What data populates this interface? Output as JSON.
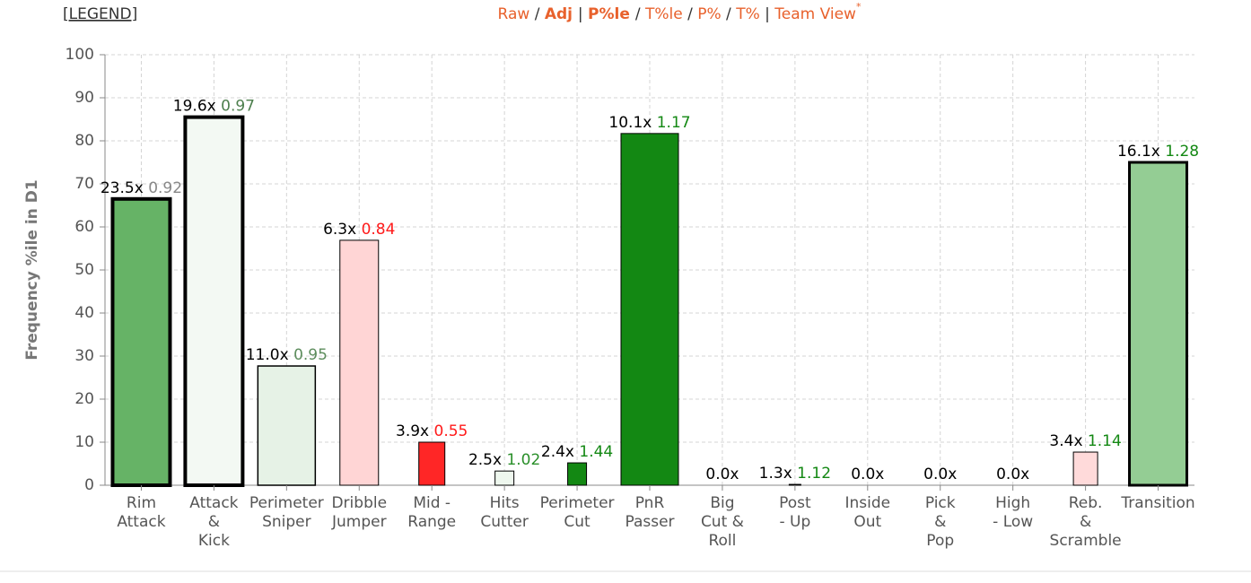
{
  "header": {
    "legend": "[LEGEND]",
    "items": [
      "Raw",
      "/",
      "Adj",
      "|",
      "P%le",
      "/",
      "T%le",
      "/",
      "P%",
      "/",
      "T%",
      "|",
      "Team View"
    ],
    "asterisk": "*"
  },
  "chart_data": {
    "type": "bar",
    "y_label": "Frequency %ile in D1",
    "categories": [
      [
        "Rim",
        "Attack"
      ],
      [
        "Attack",
        "&",
        "Kick"
      ],
      [
        "Perimeter",
        "Sniper"
      ],
      [
        "Dribble",
        "Jumper"
      ],
      [
        "Mid -",
        "Range"
      ],
      [
        "Hits",
        "Cutter"
      ],
      [
        "Perimeter",
        "Cut"
      ],
      [
        "PnR",
        "Passer"
      ],
      [
        "Big",
        "Cut &",
        "Roll"
      ],
      [
        "Post",
        "- Up"
      ],
      [
        "Inside",
        "Out"
      ],
      [
        "Pick",
        "&",
        "Pop"
      ],
      [
        "High",
        "- Low"
      ],
      [
        "Reb.",
        "&",
        "Scramble"
      ],
      [
        "Transition"
      ]
    ],
    "values": [
      66.5,
      85.5,
      27.7,
      56.9,
      10,
      3.3,
      5.2,
      81.7,
      0,
      0.2,
      0,
      0,
      0,
      7.7,
      75
    ],
    "colors": [
      "#66b366",
      "#f3f9f3",
      "#e6f2e6",
      "#ffd5d5",
      "#ff2626",
      "#eef7ee",
      "#138813",
      "#138813",
      "#cccccc",
      "#138813",
      "#cccccc",
      "#cccccc",
      "#cccccc",
      "#ffdada",
      "#94cd94"
    ],
    "freq_labels": [
      "23.5x",
      "19.6x",
      "11.0x",
      "6.3x",
      "3.9x",
      "2.5x",
      "2.4x",
      "10.1x",
      "0.0x",
      "1.3x",
      "0.0x",
      "0.0x",
      "0.0x",
      "3.4x",
      "16.1x"
    ],
    "eff_labels": [
      "0.92",
      "0.97",
      "0.95",
      "0.84",
      "0.55",
      "1.02",
      "1.44",
      "1.17",
      null,
      "1.12",
      null,
      null,
      null,
      "1.14",
      "1.28"
    ],
    "eff_label_colors": [
      "#888888",
      "#4d7f4d",
      "#5d8d5d",
      "#ff1a1a",
      "#ff1a1a",
      "#2a8f2a",
      "#138813",
      "#138813",
      null,
      "#138813",
      null,
      null,
      null,
      "#138813",
      "#138813"
    ],
    "ylim": [
      0,
      100
    ],
    "yticks": [
      0,
      10,
      20,
      30,
      40,
      50,
      60,
      70,
      80,
      90,
      100
    ],
    "grid": true
  }
}
